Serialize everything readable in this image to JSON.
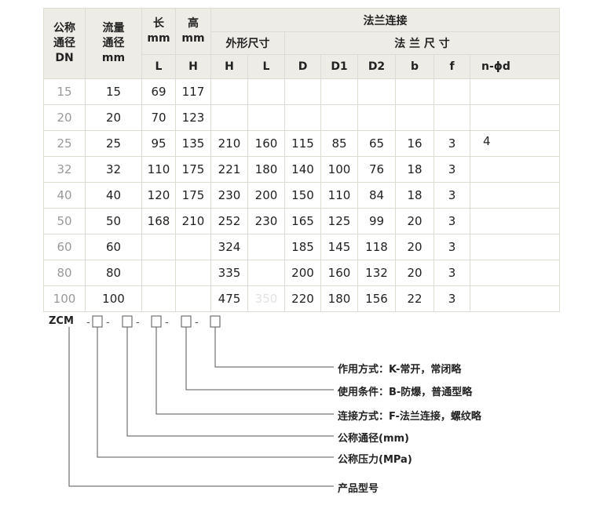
{
  "header": {
    "dn": "公称\n通径\nDN",
    "flow": "流量\n通径\nmm",
    "len": "长\nmm",
    "hgt": "高\nmm",
    "flange": "法兰连接",
    "outline": "外形尺寸",
    "flange_size": "法 兰 尺 寸",
    "cols": [
      "L",
      "H",
      "H",
      "L",
      "D",
      "D1",
      "D2",
      "b",
      "f",
      "n-ϕd"
    ]
  },
  "rows": [
    [
      "15",
      "15",
      "69",
      "117",
      "",
      "",
      "",
      "",
      "",
      "",
      "",
      ""
    ],
    [
      "20",
      "20",
      "70",
      "123",
      "",
      "",
      "",
      "",
      "",
      "",
      "",
      ""
    ],
    [
      "25",
      "25",
      "95",
      "135",
      "210",
      "160",
      "115",
      "85",
      "65",
      "16",
      "3",
      "4"
    ],
    [
      "32",
      "32",
      "110",
      "175",
      "221",
      "180",
      "140",
      "100",
      "76",
      "18",
      "3",
      ""
    ],
    [
      "40",
      "40",
      "120",
      "175",
      "230",
      "200",
      "150",
      "110",
      "84",
      "18",
      "3",
      ""
    ],
    [
      "50",
      "50",
      "168",
      "210",
      "252",
      "230",
      "165",
      "125",
      "99",
      "20",
      "3",
      ""
    ],
    [
      "60",
      "60",
      "",
      "",
      "324",
      "",
      "185",
      "145",
      "118",
      "20",
      "3",
      ""
    ],
    [
      "80",
      "80",
      "",
      "",
      "335",
      "",
      "200",
      "160",
      "132",
      "20",
      "3",
      ""
    ],
    [
      "100",
      "100",
      "",
      "",
      "475",
      "350",
      "220",
      "180",
      "156",
      "22",
      "3",
      ""
    ]
  ],
  "model": {
    "prefix": "ZCM",
    "labels": [
      "作用方式：K-常开，常闭略",
      "使用条件：B-防爆，普通型略",
      "连接方式：F-法兰连接，螺纹略",
      "公称通径(mm)",
      "公称压力(MPa)",
      "产品型号"
    ]
  }
}
